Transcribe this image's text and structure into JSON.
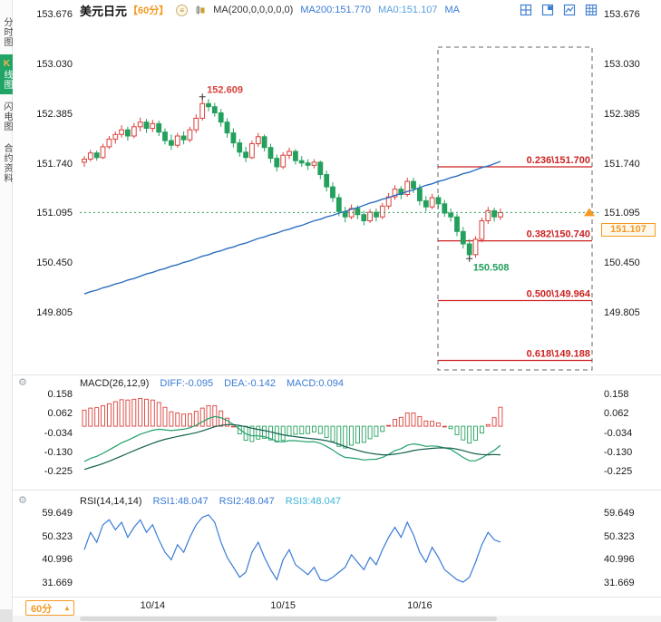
{
  "colors": {
    "up": "#d9403a",
    "down": "#23a05c",
    "ma": "#2f6fbf",
    "blue": "#3a7bd5",
    "orange": "#f59a23",
    "fib": "#cc2222",
    "price_line": "#2aa05a",
    "macd_diff": "#21a06b",
    "macd_dea": "#14604e",
    "active_tab": "#21a567"
  },
  "sidebar": {
    "items": [
      {
        "label": "分时图"
      },
      {
        "label": "K线图"
      },
      {
        "label": "闪电图"
      },
      {
        "label": "合约资料"
      }
    ]
  },
  "toolbar": {
    "symbol": "美元日元",
    "period": "【60分】",
    "ma_settings": "MA(200,0,0,0,0,0)",
    "ma200": "MA200:151.770",
    "ma0": "MA0:151.107",
    "ma": "MA"
  },
  "icons": {
    "interval_menu": "circled-menu",
    "indicator": "mini-candles",
    "settings": "gear",
    "price_arrow": "up-triangle",
    "layout": [
      "quad-split-icon",
      "pop-panel-icon",
      "line-panel-icon",
      "nine-grid-icon"
    ]
  },
  "main_chart": {
    "yticks": [
      "153.676",
      "153.030",
      "152.385",
      "151.740",
      "151.095",
      "150.450",
      "149.805"
    ],
    "xticks": [
      {
        "label": "10/14",
        "index": 11
      },
      {
        "label": "10/15",
        "index": 32
      },
      {
        "label": "10/16",
        "index": 54
      }
    ],
    "price_line": {
      "label": "151.107",
      "value": 151.107
    },
    "fib": [
      {
        "label": "0.236\\151.700",
        "value": 151.7
      },
      {
        "label": "0.382\\150.740",
        "value": 150.74
      },
      {
        "label": "0.500\\149.964",
        "value": 149.964
      },
      {
        "label": "0.618\\149.188",
        "value": 149.188
      }
    ],
    "annotations": {
      "high": {
        "label": "152.609",
        "value": 152.609,
        "index": 19
      },
      "low": {
        "label": "150.508",
        "value": 150.508,
        "index": 62
      }
    }
  },
  "macd": {
    "header": {
      "title": "MACD(26,12,9)",
      "diff": "DIFF:-0.095",
      "dea": "DEA:-0.142",
      "macd": "MACD:0.094"
    },
    "yticks": [
      "0.158",
      "0.062",
      "-0.034",
      "-0.130",
      "-0.225"
    ]
  },
  "rsi": {
    "header": {
      "title": "RSI(14,14,14)",
      "rsi1": "RSI1:48.047",
      "rsi2": "RSI2:48.047",
      "rsi3": "RSI3:48.047"
    },
    "yticks": [
      "59.649",
      "50.323",
      "40.996",
      "31.669"
    ]
  },
  "bottom": {
    "period_label": "60分"
  },
  "chart_data": {
    "type": "candlestick",
    "symbol": "美元日元",
    "interval": "60分",
    "candles": [
      [
        151.76,
        151.84,
        151.7,
        151.8
      ],
      [
        151.8,
        151.92,
        151.77,
        151.88
      ],
      [
        151.88,
        151.91,
        151.78,
        151.82
      ],
      [
        151.82,
        152.0,
        151.8,
        151.96
      ],
      [
        151.96,
        152.1,
        151.93,
        152.06
      ],
      [
        152.06,
        152.16,
        152.0,
        152.12
      ],
      [
        152.12,
        152.24,
        152.08,
        152.18
      ],
      [
        152.18,
        152.22,
        152.04,
        152.1
      ],
      [
        152.1,
        152.27,
        152.07,
        152.22
      ],
      [
        152.22,
        152.34,
        152.16,
        152.28
      ],
      [
        152.28,
        152.32,
        152.14,
        152.2
      ],
      [
        152.2,
        152.31,
        152.15,
        152.26
      ],
      [
        152.26,
        152.3,
        152.1,
        152.15
      ],
      [
        152.15,
        152.2,
        151.99,
        152.04
      ],
      [
        152.04,
        152.12,
        151.92,
        151.98
      ],
      [
        151.98,
        152.14,
        151.95,
        152.1
      ],
      [
        152.1,
        152.16,
        151.99,
        152.05
      ],
      [
        152.05,
        152.22,
        152.02,
        152.18
      ],
      [
        152.18,
        152.38,
        152.14,
        152.33
      ],
      [
        152.33,
        152.609,
        152.3,
        152.52
      ],
      [
        152.52,
        152.58,
        152.42,
        152.48
      ],
      [
        152.48,
        152.53,
        152.35,
        152.4
      ],
      [
        152.4,
        152.45,
        152.22,
        152.28
      ],
      [
        152.28,
        152.33,
        152.08,
        152.14
      ],
      [
        152.14,
        152.2,
        151.95,
        152.01
      ],
      [
        152.01,
        152.06,
        151.83,
        151.89
      ],
      [
        151.89,
        151.96,
        151.76,
        151.82
      ],
      [
        151.82,
        152.04,
        151.8,
        152.0
      ],
      [
        152.0,
        152.14,
        151.96,
        152.09
      ],
      [
        152.09,
        152.12,
        151.9,
        151.95
      ],
      [
        151.95,
        152.0,
        151.75,
        151.81
      ],
      [
        151.81,
        151.86,
        151.64,
        151.7
      ],
      [
        151.7,
        151.89,
        151.67,
        151.85
      ],
      [
        151.85,
        151.95,
        151.8,
        151.9
      ],
      [
        151.9,
        151.93,
        151.73,
        151.78
      ],
      [
        151.78,
        151.84,
        151.7,
        151.75
      ],
      [
        151.75,
        151.8,
        151.66,
        151.72
      ],
      [
        151.72,
        151.8,
        151.68,
        151.76
      ],
      [
        151.76,
        151.78,
        151.54,
        151.6
      ],
      [
        151.6,
        151.65,
        151.38,
        151.44
      ],
      [
        151.44,
        151.5,
        151.24,
        151.3
      ],
      [
        151.3,
        151.35,
        151.06,
        151.12
      ],
      [
        151.12,
        151.18,
        150.98,
        151.05
      ],
      [
        151.05,
        151.21,
        151.02,
        151.16
      ],
      [
        151.16,
        151.2,
        151.02,
        151.08
      ],
      [
        151.08,
        151.13,
        150.94,
        151.0
      ],
      [
        151.0,
        151.15,
        150.97,
        151.11
      ],
      [
        151.11,
        151.16,
        150.99,
        151.05
      ],
      [
        151.05,
        151.23,
        151.02,
        151.19
      ],
      [
        151.19,
        151.36,
        151.15,
        151.31
      ],
      [
        151.31,
        151.46,
        151.27,
        151.41
      ],
      [
        151.41,
        151.45,
        151.28,
        151.34
      ],
      [
        151.34,
        151.56,
        151.31,
        151.51
      ],
      [
        151.51,
        151.56,
        151.36,
        151.42
      ],
      [
        151.42,
        151.47,
        151.2,
        151.26
      ],
      [
        151.26,
        151.32,
        151.12,
        151.18
      ],
      [
        151.18,
        151.35,
        151.15,
        151.3
      ],
      [
        151.3,
        151.34,
        151.16,
        151.22
      ],
      [
        151.22,
        151.27,
        151.05,
        151.1
      ],
      [
        151.1,
        151.16,
        150.99,
        151.05
      ],
      [
        151.05,
        151.09,
        150.8,
        150.86
      ],
      [
        150.86,
        150.92,
        150.64,
        150.7
      ],
      [
        150.7,
        150.76,
        150.508,
        150.56
      ],
      [
        150.56,
        150.8,
        150.52,
        150.76
      ],
      [
        150.76,
        151.04,
        150.72,
        151.0
      ],
      [
        151.0,
        151.18,
        150.96,
        151.13
      ],
      [
        151.13,
        151.17,
        150.99,
        151.05
      ],
      [
        151.05,
        151.16,
        151.01,
        151.107
      ]
    ],
    "ma200": [
      150.05,
      150.08,
      150.1,
      150.13,
      150.15,
      150.18,
      150.2,
      150.23,
      150.25,
      150.28,
      150.31,
      150.33,
      150.36,
      150.38,
      150.41,
      150.43,
      150.46,
      150.48,
      150.51,
      150.54,
      150.56,
      150.59,
      150.61,
      150.64,
      150.66,
      150.69,
      150.71,
      150.74,
      150.77,
      150.79,
      150.82,
      150.84,
      150.87,
      150.89,
      150.92,
      150.94,
      150.97,
      151.0,
      151.02,
      151.05,
      151.07,
      151.1,
      151.12,
      151.15,
      151.17,
      151.2,
      151.23,
      151.25,
      151.28,
      151.3,
      151.33,
      151.35,
      151.38,
      151.4,
      151.43,
      151.46,
      151.48,
      151.51,
      151.53,
      151.56,
      151.58,
      151.61,
      151.63,
      151.66,
      151.69,
      151.71,
      151.74,
      151.77
    ],
    "macd": {
      "diff": [
        -0.175,
        -0.16,
        -0.15,
        -0.135,
        -0.118,
        -0.1,
        -0.082,
        -0.07,
        -0.055,
        -0.04,
        -0.03,
        -0.02,
        -0.015,
        -0.018,
        -0.022,
        -0.018,
        -0.015,
        -0.008,
        0.005,
        0.022,
        0.038,
        0.048,
        0.042,
        0.028,
        0.008,
        -0.015,
        -0.038,
        -0.048,
        -0.048,
        -0.052,
        -0.062,
        -0.075,
        -0.078,
        -0.072,
        -0.072,
        -0.075,
        -0.078,
        -0.077,
        -0.085,
        -0.1,
        -0.118,
        -0.14,
        -0.155,
        -0.158,
        -0.162,
        -0.168,
        -0.165,
        -0.164,
        -0.155,
        -0.14,
        -0.122,
        -0.112,
        -0.095,
        -0.088,
        -0.092,
        -0.1,
        -0.098,
        -0.1,
        -0.108,
        -0.115,
        -0.135,
        -0.155,
        -0.172,
        -0.172,
        -0.158,
        -0.138,
        -0.12,
        -0.095
      ],
      "dea": [
        -0.215,
        -0.205,
        -0.196,
        -0.186,
        -0.174,
        -0.161,
        -0.148,
        -0.135,
        -0.122,
        -0.109,
        -0.097,
        -0.085,
        -0.074,
        -0.065,
        -0.058,
        -0.051,
        -0.045,
        -0.039,
        -0.032,
        -0.023,
        -0.013,
        -0.003,
        0.004,
        0.008,
        0.008,
        0.004,
        -0.003,
        -0.01,
        -0.016,
        -0.022,
        -0.028,
        -0.036,
        -0.043,
        -0.048,
        -0.052,
        -0.056,
        -0.06,
        -0.063,
        -0.067,
        -0.072,
        -0.08,
        -0.09,
        -0.101,
        -0.111,
        -0.12,
        -0.128,
        -0.134,
        -0.139,
        -0.142,
        -0.142,
        -0.139,
        -0.134,
        -0.128,
        -0.121,
        -0.116,
        -0.113,
        -0.11,
        -0.108,
        -0.108,
        -0.109,
        -0.114,
        -0.121,
        -0.13,
        -0.137,
        -0.141,
        -0.142,
        -0.141,
        -0.142
      ]
    },
    "rsi": [
      45,
      52,
      48,
      55,
      57,
      53,
      56,
      50,
      54,
      57,
      52,
      55,
      49,
      44,
      41,
      47,
      44,
      50,
      55,
      58,
      59,
      56,
      48,
      42,
      38,
      34,
      36,
      44,
      48,
      42,
      37,
      33,
      41,
      45,
      39,
      37,
      35,
      38,
      33,
      32.5,
      34,
      36,
      38,
      43,
      40,
      37,
      42,
      39,
      45,
      50,
      54,
      50,
      56,
      51,
      44,
      40,
      46,
      42,
      37,
      35,
      33,
      32,
      34,
      40,
      47,
      52,
      49,
      48.047
    ]
  }
}
